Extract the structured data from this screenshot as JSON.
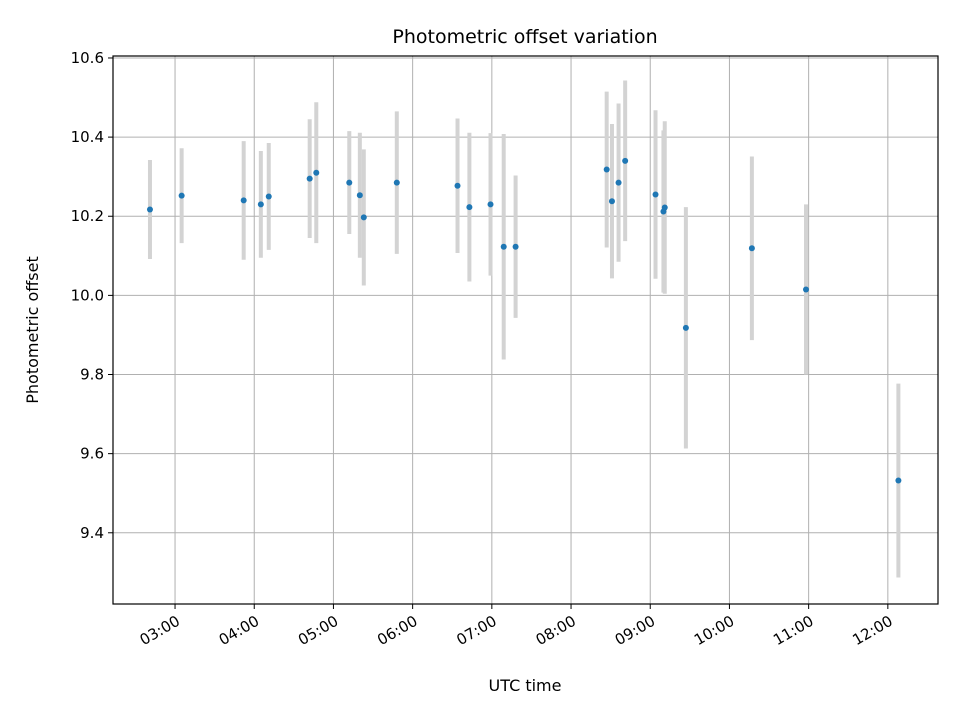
{
  "chart_data": {
    "type": "scatter",
    "title": "Photometric offset variation",
    "xlabel": "UTC time",
    "ylabel": "Photometric offset",
    "xlim": [
      "02:13",
      "12:38"
    ],
    "ylim": [
      9.22,
      10.605
    ],
    "x_ticks": [
      "03:00",
      "04:00",
      "05:00",
      "06:00",
      "07:00",
      "08:00",
      "09:00",
      "10:00",
      "11:00",
      "12:00"
    ],
    "y_ticks": [
      9.4,
      9.6,
      9.8,
      10.0,
      10.2,
      10.4,
      10.6
    ],
    "grid": true,
    "colors": {
      "point": "#1f77b4",
      "error_bar": "#d3d3d3",
      "grid": "#b0b0b0"
    },
    "points": [
      {
        "t": "02:41",
        "y": 10.217,
        "err": 0.125
      },
      {
        "t": "03:05",
        "y": 10.252,
        "err": 0.12
      },
      {
        "t": "03:52",
        "y": 10.24,
        "err": 0.15
      },
      {
        "t": "04:05",
        "y": 10.23,
        "err": 0.135
      },
      {
        "t": "04:11",
        "y": 10.25,
        "err": 0.135
      },
      {
        "t": "04:42",
        "y": 10.295,
        "err": 0.15
      },
      {
        "t": "04:47",
        "y": 10.31,
        "err": 0.178
      },
      {
        "t": "05:12",
        "y": 10.285,
        "err": 0.13
      },
      {
        "t": "05:20",
        "y": 10.253,
        "err": 0.158
      },
      {
        "t": "05:23",
        "y": 10.197,
        "err": 0.172
      },
      {
        "t": "05:48",
        "y": 10.285,
        "err": 0.18
      },
      {
        "t": "06:34",
        "y": 10.277,
        "err": 0.17
      },
      {
        "t": "06:43",
        "y": 10.223,
        "err": 0.188
      },
      {
        "t": "06:59",
        "y": 10.23,
        "err": 0.18
      },
      {
        "t": "07:09",
        "y": 10.123,
        "err": 0.285
      },
      {
        "t": "07:18",
        "y": 10.123,
        "err": 0.18
      },
      {
        "t": "08:27",
        "y": 10.318,
        "err": 0.197
      },
      {
        "t": "08:31",
        "y": 10.238,
        "err": 0.195
      },
      {
        "t": "08:36",
        "y": 10.285,
        "err": 0.2
      },
      {
        "t": "08:41",
        "y": 10.34,
        "err": 0.203
      },
      {
        "t": "09:04",
        "y": 10.255,
        "err": 0.213
      },
      {
        "t": "09:10",
        "y": 10.212,
        "err": 0.205
      },
      {
        "t": "09:11",
        "y": 10.222,
        "err": 0.218
      },
      {
        "t": "09:27",
        "y": 9.918,
        "err": 0.305
      },
      {
        "t": "10:17",
        "y": 10.119,
        "err": 0.232
      },
      {
        "t": "10:58",
        "y": 10.015,
        "err": 0.215
      },
      {
        "t": "12:08",
        "y": 9.532,
        "err": 0.245
      }
    ]
  }
}
